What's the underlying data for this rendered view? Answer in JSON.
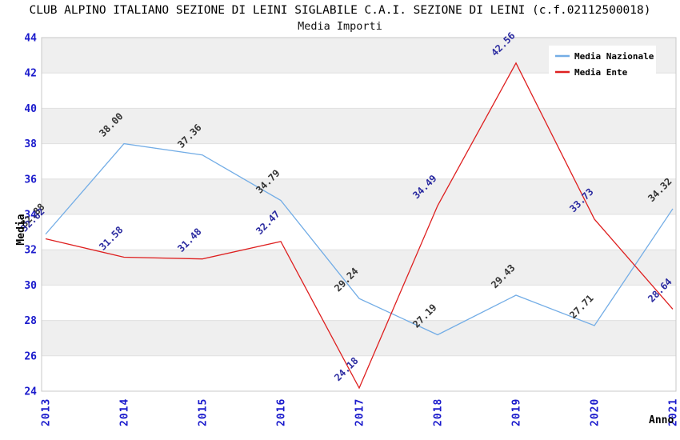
{
  "window": {
    "title": "CLUB ALPINO ITALIANO SEZIONE DI LEINI SIGLABILE C.A.I. SEZIONE DI LEINI (c.f.02112500018)",
    "subtitle": "Media Importi"
  },
  "axes": {
    "y_label": "Media",
    "x_label": "Anno"
  },
  "legend": {
    "position": "top-right",
    "items": [
      {
        "label": "Media Nazionale",
        "color": "#73ADE6"
      },
      {
        "label": "Media Ente",
        "color": "#DE1F1F"
      }
    ]
  },
  "chart_data": {
    "type": "line",
    "title": "Media Importi",
    "xlabel": "Anno",
    "ylabel": "Media",
    "categories": [
      "2013",
      "2014",
      "2015",
      "2016",
      "2017",
      "2018",
      "2019",
      "2020",
      "2021"
    ],
    "series": [
      {
        "name": "Media Nazionale",
        "color": "#73ADE6",
        "label_color": "#333333",
        "values": [
          32.88,
          38.0,
          37.36,
          34.79,
          29.24,
          27.19,
          29.43,
          27.71,
          34.32
        ]
      },
      {
        "name": "Media Ente",
        "color": "#DE1F1F",
        "label_color": "#2A2AA0",
        "values": [
          32.62,
          31.58,
          31.48,
          32.47,
          24.18,
          34.49,
          42.56,
          33.73,
          28.64
        ]
      }
    ],
    "ylim": [
      24,
      44
    ],
    "ytick_step": 2,
    "grid": "horizontal-bands",
    "band_color": "#EFEFEF",
    "grid_color": "#E0E0E0",
    "plot_border_color": "#C8C8C8",
    "tick_label_color": "#1A1ACC",
    "legend_position": "top-right"
  }
}
